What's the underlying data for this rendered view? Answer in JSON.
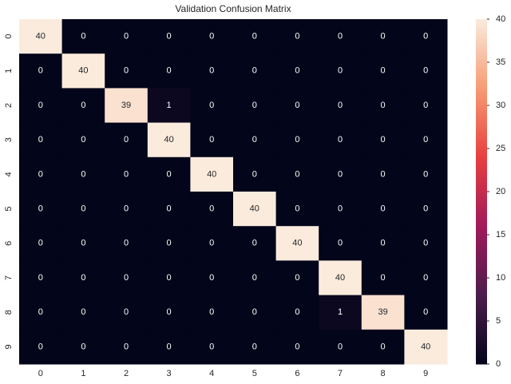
{
  "chart_data": {
    "type": "heatmap",
    "title": "Validation Confusion Matrix",
    "x": [
      "0",
      "1",
      "2",
      "3",
      "4",
      "5",
      "6",
      "7",
      "8",
      "9"
    ],
    "y": [
      "0",
      "1",
      "2",
      "3",
      "4",
      "5",
      "6",
      "7",
      "8",
      "9"
    ],
    "values": [
      [
        40,
        0,
        0,
        0,
        0,
        0,
        0,
        0,
        0,
        0
      ],
      [
        0,
        40,
        0,
        0,
        0,
        0,
        0,
        0,
        0,
        0
      ],
      [
        0,
        0,
        39,
        1,
        0,
        0,
        0,
        0,
        0,
        0
      ],
      [
        0,
        0,
        0,
        40,
        0,
        0,
        0,
        0,
        0,
        0
      ],
      [
        0,
        0,
        0,
        0,
        40,
        0,
        0,
        0,
        0,
        0
      ],
      [
        0,
        0,
        0,
        0,
        0,
        40,
        0,
        0,
        0,
        0
      ],
      [
        0,
        0,
        0,
        0,
        0,
        0,
        40,
        0,
        0,
        0
      ],
      [
        0,
        0,
        0,
        0,
        0,
        0,
        0,
        40,
        0,
        0
      ],
      [
        0,
        0,
        0,
        0,
        0,
        0,
        0,
        1,
        39,
        0
      ],
      [
        0,
        0,
        0,
        0,
        0,
        0,
        0,
        0,
        0,
        40
      ]
    ],
    "zlim": [
      0,
      40
    ],
    "zticks": [
      0,
      5,
      10,
      15,
      20,
      25,
      30,
      35,
      40
    ]
  }
}
